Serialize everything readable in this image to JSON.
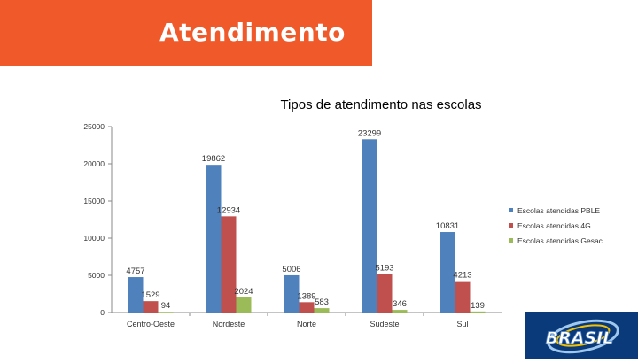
{
  "header": {
    "title": "Atendimento"
  },
  "chart_data": {
    "type": "bar",
    "title": "Tipos de atendimento nas escolas",
    "xlabel": "",
    "ylabel": "",
    "categories": [
      "Centro-Oeste",
      "Nordeste",
      "Norte",
      "Sudeste",
      "Sul"
    ],
    "series": [
      {
        "name": "Escolas atendidas PBLE",
        "values": [
          4757,
          19862,
          5006,
          23299,
          10831
        ],
        "color": "#4f81bd"
      },
      {
        "name": "Escolas atendidas 4G",
        "values": [
          1529,
          12934,
          1389,
          5193,
          4213
        ],
        "color": "#c0504d"
      },
      {
        "name": "Escolas atendidas Gesac",
        "values": [
          94,
          2024,
          583,
          346,
          139
        ],
        "color": "#9bbb59"
      }
    ],
    "yticks": [
      "0",
      "5000",
      "10000",
      "15000",
      "20000",
      "25000"
    ],
    "ylim": [
      0,
      25000
    ],
    "grid": false,
    "legend": "right"
  },
  "logo": {
    "text": "BRASIL",
    "icon": "brasil-logo-icon"
  }
}
